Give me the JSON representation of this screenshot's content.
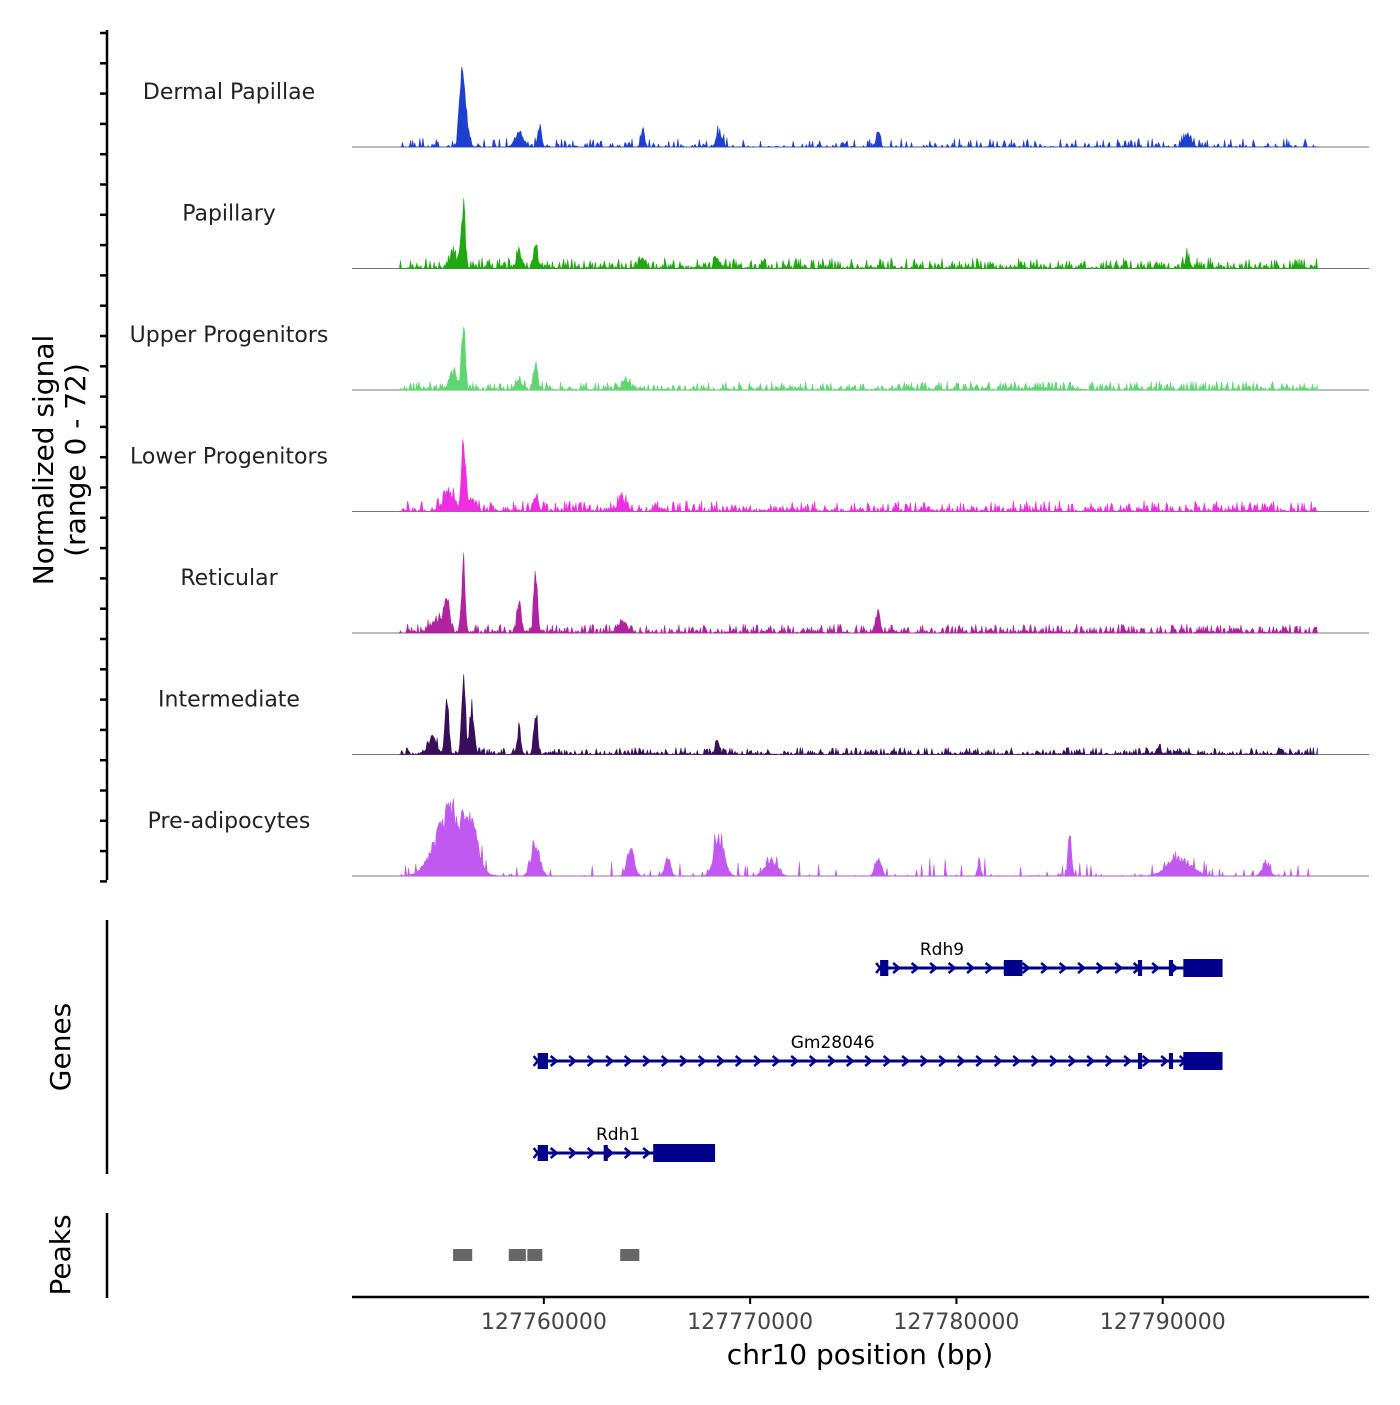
{
  "chart_data": {
    "type": "area",
    "title": "",
    "y_axis_title": [
      "Normalized signal",
      "(range 0 - 72)"
    ],
    "y_range": [
      0,
      72
    ],
    "xlabel": "chr10 position (bp)",
    "x_range": [
      127750700,
      127800000
    ],
    "x_ticks": [
      127760000,
      127770000,
      127780000,
      127790000
    ],
    "x_tick_labels": [
      "127760000",
      "127770000",
      "127780000",
      "127790000"
    ],
    "data_start": 127753000,
    "data_end": 127797500,
    "tracks": [
      {
        "name": "Dermal Papillae",
        "color": "#1f3fcf",
        "seed": 11,
        "sparse": 0.45,
        "base": 5,
        "peaks": [
          [
            127756000,
            70,
            150
          ],
          [
            127756200,
            35,
            200
          ],
          [
            127758800,
            15,
            300
          ],
          [
            127759800,
            22,
            120
          ],
          [
            127764800,
            20,
            120
          ],
          [
            127768500,
            14,
            200
          ],
          [
            127776200,
            20,
            120
          ],
          [
            127791200,
            14,
            250
          ]
        ]
      },
      {
        "name": "Papillary",
        "color": "#1fa80f",
        "seed": 23,
        "sparse": 0,
        "base": 6,
        "peaks": [
          [
            127756100,
            70,
            120
          ],
          [
            127755600,
            15,
            250
          ],
          [
            127758800,
            18,
            150
          ],
          [
            127759600,
            26,
            120
          ],
          [
            127764800,
            10,
            200
          ],
          [
            127768400,
            12,
            150
          ],
          [
            127791200,
            12,
            150
          ]
        ]
      },
      {
        "name": "Upper Progenitors",
        "color": "#5fd672",
        "seed": 37,
        "sparse": 0,
        "base": 5,
        "peaks": [
          [
            127756100,
            72,
            120
          ],
          [
            127755600,
            18,
            250
          ],
          [
            127759600,
            28,
            120
          ],
          [
            127758800,
            10,
            200
          ],
          [
            127764000,
            8,
            300
          ]
        ]
      },
      {
        "name": "Lower Progenitors",
        "color": "#ee2ee0",
        "seed": 41,
        "sparse": 0,
        "base": 6,
        "peaks": [
          [
            127756100,
            82,
            120
          ],
          [
            127755400,
            18,
            400
          ],
          [
            127756500,
            14,
            250
          ],
          [
            127759600,
            18,
            150
          ],
          [
            127763800,
            10,
            300
          ]
        ]
      },
      {
        "name": "Reticular",
        "color": "#b0229f",
        "seed": 53,
        "sparse": 0,
        "base": 5,
        "peaks": [
          [
            127756100,
            78,
            120
          ],
          [
            127755300,
            30,
            200
          ],
          [
            127754800,
            14,
            400
          ],
          [
            127759600,
            70,
            120
          ],
          [
            127758800,
            30,
            150
          ],
          [
            127776200,
            22,
            150
          ],
          [
            127763800,
            12,
            300
          ]
        ]
      },
      {
        "name": "Intermediate",
        "color": "#3a0f5a",
        "seed": 67,
        "sparse": 0,
        "base": 4,
        "peaks": [
          [
            127756100,
            100,
            120
          ],
          [
            127755300,
            72,
            120
          ],
          [
            127756500,
            50,
            150
          ],
          [
            127754600,
            18,
            300
          ],
          [
            127759600,
            50,
            120
          ],
          [
            127758800,
            30,
            120
          ],
          [
            127768400,
            18,
            120
          ],
          [
            127789800,
            8,
            150
          ]
        ]
      },
      {
        "name": "Pre-adipocytes",
        "color": "#c159f0",
        "seed": 79,
        "sparse": 0.8,
        "base": 10,
        "peaks": [
          [
            127755500,
            70,
            1000
          ],
          [
            127756500,
            40,
            400
          ],
          [
            127759600,
            30,
            300
          ],
          [
            127764200,
            28,
            250
          ],
          [
            127766000,
            18,
            200
          ],
          [
            127768500,
            40,
            350
          ],
          [
            127771000,
            18,
            400
          ],
          [
            127776200,
            22,
            200
          ],
          [
            127781100,
            18,
            100
          ],
          [
            127785500,
            46,
            120
          ],
          [
            127790800,
            20,
            800
          ],
          [
            127795000,
            15,
            250
          ]
        ]
      }
    ],
    "genes": [
      {
        "name": "Rdh9",
        "start": 127776300,
        "end": 127792900,
        "label_pos": 127779300,
        "exons": [
          [
            127776300,
            127776700,
            "small"
          ],
          [
            127782300,
            127783200,
            "small"
          ],
          [
            127788800,
            127789000,
            "small"
          ],
          [
            127790300,
            127790500,
            "small"
          ],
          [
            127791000,
            127792900,
            "big"
          ]
        ]
      },
      {
        "name": "Gm28046",
        "start": 127759700,
        "end": 127792900,
        "label_pos": 127774000,
        "exons": [
          [
            127759700,
            127760200,
            "small"
          ],
          [
            127788800,
            127789000,
            "small"
          ],
          [
            127790300,
            127790500,
            "small"
          ],
          [
            127791000,
            127792900,
            "big"
          ]
        ]
      },
      {
        "name": "Rdh1",
        "start": 127759700,
        "end": 127768300,
        "label_pos": 127763600,
        "exons": [
          [
            127759700,
            127760200,
            "small"
          ],
          [
            127762900,
            127763100,
            "small"
          ],
          [
            127765300,
            127768300,
            "big"
          ]
        ]
      }
    ],
    "gene_color": "#00008b",
    "genes_label": "Genes",
    "peaks_label": "Peaks",
    "peaks": [
      [
        127755600,
        127756600
      ],
      [
        127758300,
        127759200
      ],
      [
        127759200,
        127760000
      ],
      [
        127763700,
        127764700
      ]
    ],
    "peak_color": "#666666"
  }
}
